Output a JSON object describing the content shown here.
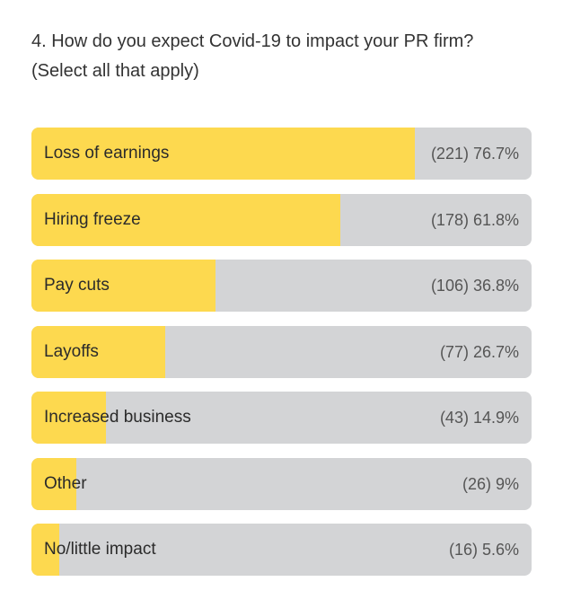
{
  "chart_data": {
    "type": "bar",
    "orientation": "horizontal",
    "title": "4. How do you expect Covid-19 to impact your PR firm? (Select all that apply)",
    "categories": [
      "Loss of earnings",
      "Hiring freeze",
      "Pay cuts",
      "Layoffs",
      "Increased business",
      "Other",
      "No/little impact"
    ],
    "values": [
      76.7,
      61.8,
      36.8,
      26.7,
      14.9,
      9,
      5.6
    ],
    "value_labels": [
      "(221) 76.7%",
      "(178) 61.8%",
      "(106) 36.8%",
      "(77) 26.7%",
      "(43) 14.9%",
      "(26) 9%",
      "(16) 5.6%"
    ],
    "color": "#fdd94f",
    "track_color": "#d3d4d6",
    "xlim": [
      0,
      100
    ]
  }
}
